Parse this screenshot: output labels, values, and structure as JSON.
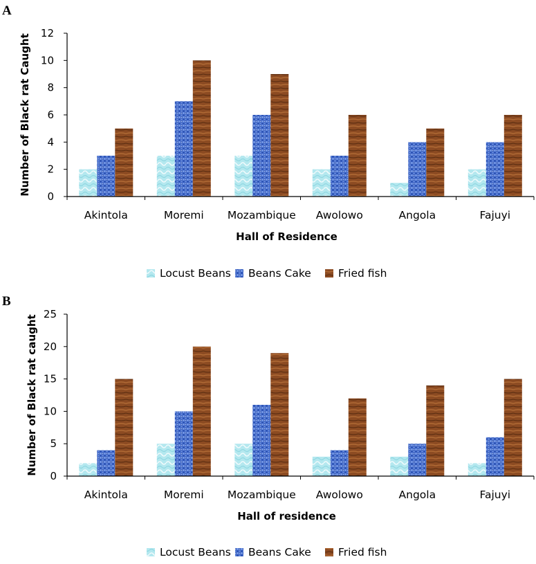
{
  "chart_data": [
    {
      "panel": "A",
      "type": "bar",
      "categories": [
        "Akintola",
        "Moremi",
        "Mozambique",
        "Awolowo",
        "Angola",
        "Fajuyi"
      ],
      "series": [
        {
          "name": "Locust Beans",
          "values": [
            2,
            3,
            3,
            2,
            1,
            2
          ],
          "color": "#a8e4ec"
        },
        {
          "name": "Beans Cake",
          "values": [
            3,
            7,
            6,
            3,
            4,
            4
          ],
          "color": "#3d63c4"
        },
        {
          "name": "Fried fish",
          "values": [
            5,
            10,
            9,
            6,
            5,
            6
          ],
          "color": "#8b4a23"
        }
      ],
      "xlabel": "Hall of Residence",
      "ylabel": "Number of Black rat Caught",
      "ylim": [
        0,
        12
      ],
      "yticks": [
        0,
        2,
        4,
        6,
        8,
        10,
        12
      ],
      "grid": false,
      "legend": "bottom"
    },
    {
      "panel": "B",
      "type": "bar",
      "categories": [
        "Akintola",
        "Moremi",
        "Mozambique",
        "Awolowo",
        "Angola",
        "Fajuyi"
      ],
      "series": [
        {
          "name": "Locust Beans",
          "values": [
            2,
            5,
            5,
            3,
            3,
            2
          ],
          "color": "#a8e4ec"
        },
        {
          "name": "Beans Cake",
          "values": [
            4,
            10,
            11,
            4,
            5,
            6
          ],
          "color": "#3d63c4"
        },
        {
          "name": "Fried fish",
          "values": [
            15,
            20,
            19,
            12,
            14,
            15
          ],
          "color": "#8b4a23"
        }
      ],
      "xlabel": "Hall of residence",
      "ylabel": "Number of Black rat caught",
      "ylim": [
        0,
        25
      ],
      "yticks": [
        0,
        5,
        10,
        15,
        20,
        25
      ],
      "grid": false,
      "legend": "bottom"
    }
  ]
}
